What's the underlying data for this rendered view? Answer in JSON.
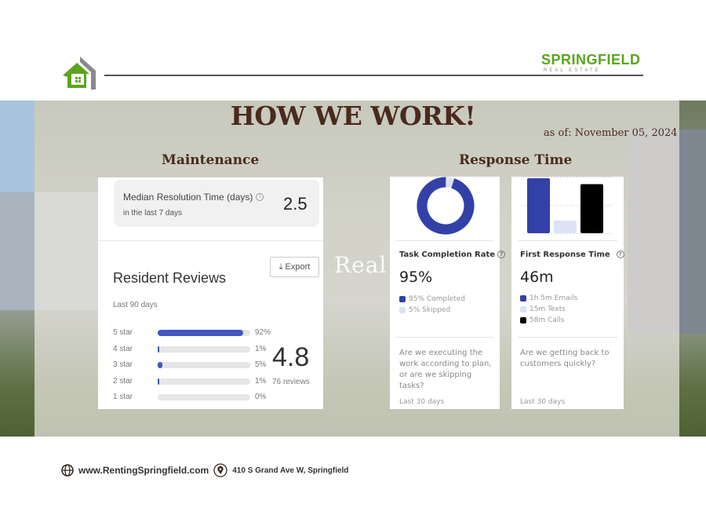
{
  "brand": {
    "name": "SPRINGFIELD",
    "sub": "REAL ESTATE",
    "green": "#5aa51f",
    "brown": "#4a2a1d"
  },
  "header": {
    "title": "HOW WE WORK!",
    "as_of": "as of: November 05, 2024",
    "watermark": "Real"
  },
  "maintenance": {
    "heading": "Maintenance",
    "median": {
      "label": "Median Resolution Time (days)",
      "sub": "in the last 7 days",
      "value": "2.5"
    },
    "reviews": {
      "title": "Resident Reviews",
      "export": "Export",
      "period": "Last 90 days",
      "rating": "4.8",
      "count": "76 reviews",
      "rows": [
        {
          "label": "5 star",
          "pct": "92%",
          "value": 92
        },
        {
          "label": "4 star",
          "pct": "1%",
          "value": 1
        },
        {
          "label": "3 star",
          "pct": "5%",
          "value": 5
        },
        {
          "label": "2 star",
          "pct": "1%",
          "value": 1
        },
        {
          "label": "1 star",
          "pct": "0%",
          "value": 0
        }
      ]
    }
  },
  "response": {
    "heading": "Response Time",
    "task": {
      "title": "Task Completion Rate",
      "value": "95%",
      "completed_pct": 95,
      "legend": [
        {
          "label": "95% Completed",
          "color": "#3340a8"
        },
        {
          "label": "5% Skipped",
          "color": "#dde3f5"
        }
      ],
      "question": "Are we executing the work according to plan, or are we skipping tasks?",
      "period": "Last 30 days"
    },
    "first": {
      "title": "First Response Time",
      "value": "46m",
      "bars_minutes": [
        65,
        15,
        58
      ],
      "legend": [
        {
          "label": "1h 5m Emails",
          "color": "#3340a8"
        },
        {
          "label": "15m Texts",
          "color": "#dde3f5"
        },
        {
          "label": "58m Calls",
          "color": "#000000"
        }
      ],
      "question": "Are we getting back to customers quickly?",
      "period": "Last 30 days"
    }
  },
  "footer": {
    "website": "www.RentingSpringfield.com",
    "address": "410 S Grand Ave W, Springfield"
  }
}
